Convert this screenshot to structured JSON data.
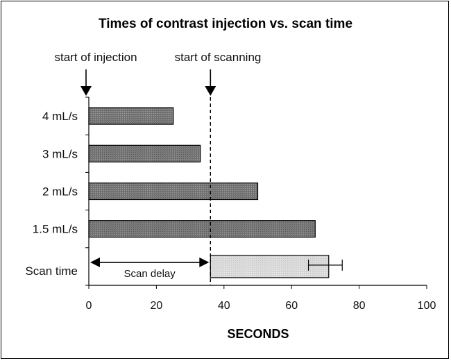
{
  "chart_data": {
    "type": "bar",
    "orientation": "horizontal",
    "title": "Times of contrast injection vs. scan time",
    "xlabel": "SECONDS",
    "xlim": [
      0,
      100
    ],
    "xticks": [
      0,
      20,
      40,
      60,
      80,
      100
    ],
    "categories": [
      "4 mL/s",
      "3 mL/s",
      "2 mL/s",
      "1.5 mL/s"
    ],
    "values": [
      25,
      33,
      50,
      67
    ],
    "scan": {
      "label": "Scan time",
      "start": 36,
      "end": 71,
      "error_low": 65,
      "error_high": 75
    },
    "annotations": {
      "start_injection": {
        "text": "start of injection",
        "x": 0
      },
      "start_scanning": {
        "text": "start of scanning",
        "x": 36
      },
      "scan_delay": {
        "text": "Scan delay",
        "from": 0,
        "to": 36
      }
    },
    "colors": {
      "bar_dark": "#7a7a7a",
      "bar_light": "#d9d9d9"
    },
    "grid": false
  }
}
